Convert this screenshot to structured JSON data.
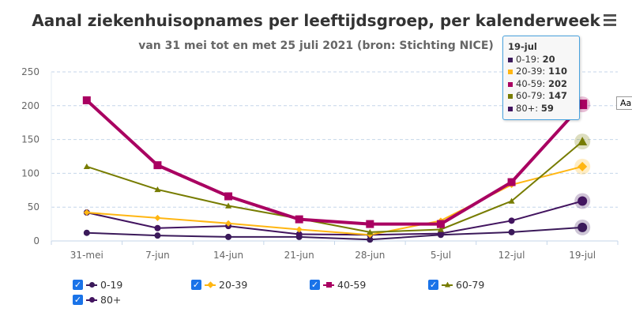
{
  "header": {
    "title": "Aanal ziekenhuisopnames per leeftijdsgroep, per kalenderweek",
    "subtitle": "van 31 mei tot en met 25 juli 2021 (bron: Stichting NICE)",
    "menu_icon": "hamburger-icon"
  },
  "chart_data": {
    "type": "line",
    "title": "Aanal ziekenhuisopnames per leeftijdsgroep, per kalenderweek",
    "subtitle": "van 31 mei tot en met 25 juli 2021 (bron: Stichting NICE)",
    "categories": [
      "31-mei",
      "7-jun",
      "14-jun",
      "21-jun",
      "28-jun",
      "5-jul",
      "12-jul",
      "19-jul"
    ],
    "ylim": [
      0,
      250
    ],
    "yticks": [
      "0",
      "50",
      "100",
      "150",
      "200",
      "250"
    ],
    "grid": true,
    "legend": "bottom",
    "series": [
      {
        "name": "0-19",
        "color": "#3b1a5a",
        "marker": "circle",
        "values": [
          12,
          8,
          6,
          6,
          2,
          9,
          13,
          20
        ]
      },
      {
        "name": "20-39",
        "color": "#ffb612",
        "marker": "diamond",
        "values": [
          42,
          34,
          26,
          17,
          9,
          30,
          83,
          110
        ]
      },
      {
        "name": "40-59",
        "color": "#a90061",
        "marker": "square",
        "values": [
          208,
          112,
          66,
          32,
          25,
          25,
          87,
          202
        ]
      },
      {
        "name": "60-79",
        "color": "#777c00",
        "marker": "triangle",
        "values": [
          110,
          76,
          52,
          33,
          13,
          17,
          59,
          147
        ]
      },
      {
        "name": "80+",
        "color": "#42145f",
        "marker": "circle",
        "values": [
          42,
          19,
          22,
          10,
          9,
          11,
          30,
          59
        ]
      }
    ]
  },
  "tooltip": {
    "header": "19-jul",
    "rows": [
      {
        "label": "0-19: ",
        "value": "20"
      },
      {
        "label": "20-39: ",
        "value": "110"
      },
      {
        "label": "40-59: ",
        "value": "202"
      },
      {
        "label": "60-79: ",
        "value": "147"
      },
      {
        "label": "80+: ",
        "value": "59"
      }
    ]
  },
  "side_label": "Aa"
}
